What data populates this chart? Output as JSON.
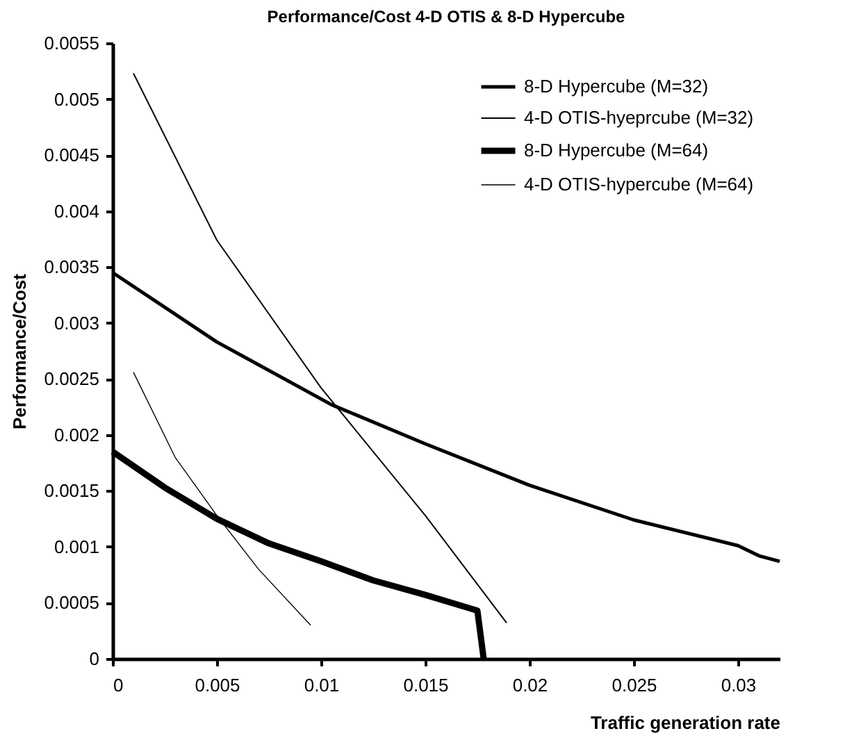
{
  "chart_data": {
    "type": "line",
    "title": "Performance/Cost 4-D OTIS & 8-D Hypercube",
    "xlabel": "Traffic generation rate",
    "ylabel": "Performance/Cost",
    "xlim": [
      0,
      0.032
    ],
    "xticks": [
      0,
      0.005,
      0.01,
      0.015,
      0.02,
      0.025,
      0.03
    ],
    "ylim": [
      0,
      0.0055
    ],
    "yticks": [
      0,
      0.0005,
      0.001,
      0.0015,
      0.002,
      0.0025,
      0.003,
      0.0035,
      0.004,
      0.0045,
      0.005,
      0.0055
    ],
    "grid": false,
    "legend": "top right",
    "marker": "none",
    "line_style": "solid",
    "series": [
      {
        "name": "8-D Hypercube (M=32)",
        "color": "#000000",
        "x": [
          0,
          0.005,
          0.0105,
          0.015,
          0.02,
          0.025,
          0.03,
          0.031,
          0.032
        ],
        "values": [
          0.00345,
          0.00283,
          0.00227,
          0.00192,
          0.00155,
          0.00124,
          0.00101,
          0.00092,
          0.00087
        ]
      },
      {
        "name": "4-D OTIS-hyeprcube (M=32)",
        "color": "#000000",
        "x": [
          0.001,
          0.005,
          0.01,
          0.015,
          0.0189
        ],
        "values": [
          0.00523,
          0.00374,
          0.00242,
          0.00128,
          0.00032
        ]
      },
      {
        "name": "8-D Hypercube (M=64)",
        "color": "#000000",
        "x": [
          0,
          0.0025,
          0.005,
          0.0075,
          0.01,
          0.0125,
          0.015,
          0.0175,
          0.0178
        ],
        "values": [
          0.00185,
          0.00153,
          0.00125,
          0.00103,
          0.00087,
          0.0007,
          0.00057,
          0.00043,
          0
        ]
      },
      {
        "name": "4-D OTIS-hypercube (M=64)",
        "color": "#000000",
        "x": [
          0.001,
          0.003,
          0.005,
          0.007,
          0.0095
        ],
        "values": [
          0.00256,
          0.0018,
          0.00128,
          0.0008,
          0.0003
        ]
      }
    ]
  }
}
